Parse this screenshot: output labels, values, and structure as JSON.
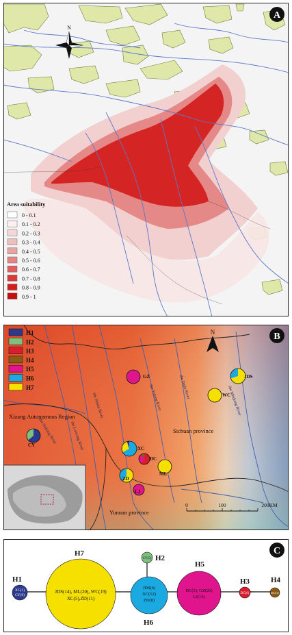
{
  "panelA": {
    "badge": "A",
    "compass": "N",
    "legend_title": "Area suitability",
    "legend": [
      {
        "label": "0 - 0.1",
        "color": "#ffffff"
      },
      {
        "label": "0.1 - 0.2",
        "color": "#fbefef"
      },
      {
        "label": "0.2 - 0.3",
        "color": "#f5d7d7"
      },
      {
        "label": "0.3 - 0.4",
        "color": "#efbebe"
      },
      {
        "label": "0.4 - 0.5",
        "color": "#e8a3a3"
      },
      {
        "label": "0.5 - 0.6",
        "color": "#e38585"
      },
      {
        "label": "0.6 - 0.7",
        "color": "#df5f5f"
      },
      {
        "label": "0.7 - 0.8",
        "color": "#da3a3a"
      },
      {
        "label": "0.8 - 0.9",
        "color": "#d01f1f"
      },
      {
        "label": "0.9 - 1",
        "color": "#c40f0f"
      }
    ]
  },
  "panelB": {
    "badge": "B",
    "compass": "N",
    "legend": [
      {
        "label": "H1",
        "color": "#2b3a8c"
      },
      {
        "label": "H2",
        "color": "#7fbf7f"
      },
      {
        "label": "H3",
        "color": "#d81e2c"
      },
      {
        "label": "H4",
        "color": "#8b5a14"
      },
      {
        "label": "H5",
        "color": "#e0148c"
      },
      {
        "label": "H6",
        "color": "#1aa9e0"
      },
      {
        "label": "H7",
        "color": "#f5e000"
      }
    ],
    "regions": {
      "xizang": "Xizang Autonomous Region",
      "sichuan": "Sichuan province",
      "yunnan": "Yunnan province"
    },
    "rivers": {
      "nujiang": "the Nujiang River",
      "lancang": "the Lancang River",
      "jinsha": "the Jinsha River",
      "yalong": "the Yalong River",
      "dadu": "the Dadu River",
      "minjiang": "the Minjiang River"
    },
    "sites": [
      {
        "label": "GZ"
      },
      {
        "label": "JDS"
      },
      {
        "label": "WC"
      },
      {
        "label": "CY"
      },
      {
        "label": "XC"
      },
      {
        "label": "DC"
      },
      {
        "label": "ML"
      },
      {
        "label": "ZD"
      },
      {
        "label": "LJ"
      }
    ],
    "scale": {
      "labels": [
        "0",
        "100",
        "200KM"
      ]
    }
  },
  "panelC": {
    "badge": "C",
    "haplotypes": {
      "H1": {
        "name": "H1",
        "lines": [
          "XC(1)",
          "CY(9)"
        ],
        "color": "#2b3a8c"
      },
      "H7": {
        "name": "H7",
        "lines": [
          "JDS(14), ML(20), WC(19)",
          "XC(5),ZD(11)"
        ],
        "color": "#f5e000"
      },
      "H2": {
        "name": "H2",
        "lines": [
          "CY(5)"
        ],
        "color": "#7fbf7f"
      },
      "H6": {
        "name": "H6",
        "lines": [
          "JDS(6)",
          "XC(12)",
          "ZD(8)"
        ],
        "color": "#1aa9e0"
      },
      "H5": {
        "name": "H5",
        "lines": [
          "DC(3), GZ(20)",
          "LJ(15)"
        ],
        "color": "#e0148c"
      },
      "H3": {
        "name": "H3",
        "lines": [
          "DC(6)"
        ],
        "color": "#d81e2c"
      },
      "H4": {
        "name": "H4",
        "lines": [
          "DC(1)"
        ],
        "color": "#8b5a14"
      }
    }
  }
}
